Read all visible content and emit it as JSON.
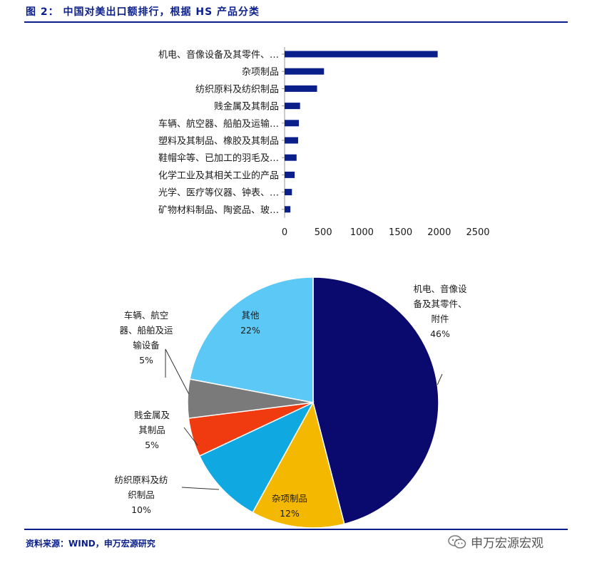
{
  "header": {
    "title": "图 2： 中国对美出口额排行，根据 HS 产品分类"
  },
  "footer": {
    "source": "资料来源：WIND，申万宏源研究",
    "watermark": "申万宏源宏观"
  },
  "colors": {
    "accent": "#0b1f8a",
    "bar": "#0b1f8a"
  },
  "chart_data": [
    {
      "type": "bar",
      "orientation": "horizontal",
      "categories": [
        "机电、音像设备及其零件、…",
        "杂项制品",
        "纺织原料及纺织制品",
        "贱金属及其制品",
        "车辆、航空器、船舶及运输…",
        "塑料及其制品、橡胶及其制品",
        "鞋帽伞等、已加工的羽毛及…",
        "化学工业及其相关工业的产品",
        "光学、医疗等仪器、钟表、…",
        "矿物材料制品、陶瓷品、玻…"
      ],
      "values": [
        1980,
        510,
        420,
        200,
        185,
        175,
        155,
        130,
        95,
        75
      ],
      "xlim": [
        0,
        2500
      ],
      "xticks": [
        "0",
        "500",
        "1000",
        "1500",
        "2000",
        "2500"
      ],
      "grid": false,
      "title": "",
      "xlabel": "",
      "ylabel": ""
    },
    {
      "type": "pie",
      "slices": [
        {
          "label_lines": [
            "机电、音像设",
            "备及其零件、",
            "附件"
          ],
          "pct_label": "46%",
          "value": 46,
          "color": "#0a0a6e"
        },
        {
          "label_lines": [
            "杂项制品"
          ],
          "pct_label": "12%",
          "value": 12,
          "color": "#f5b800"
        },
        {
          "label_lines": [
            "纺织原料及纺",
            "织制品"
          ],
          "pct_label": "10%",
          "value": 10,
          "color": "#0fa8e0"
        },
        {
          "label_lines": [
            "贱金属及",
            "其制品"
          ],
          "pct_label": "5%",
          "value": 5,
          "color": "#f03a10"
        },
        {
          "label_lines": [
            "车辆、航空",
            "器、船舶及运",
            "输设备"
          ],
          "pct_label": "5%",
          "value": 5,
          "color": "#7a7a7a"
        },
        {
          "label_lines": [
            "其他"
          ],
          "pct_label": "22%",
          "value": 22,
          "color": "#5cc8f5"
        }
      ]
    }
  ]
}
